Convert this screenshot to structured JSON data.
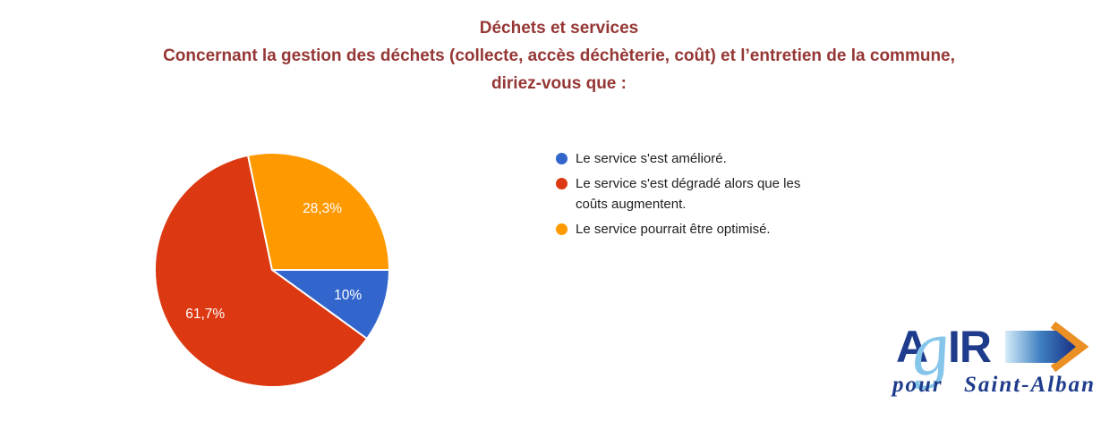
{
  "page": {
    "background": "#ffffff"
  },
  "title": {
    "color": "#953735",
    "lines": [
      "Déchets et services",
      "Concernant la gestion des déchets (collecte, accès déchèterie, coût) et l’entretien de la commune,",
      "diriez-vous que :"
    ]
  },
  "chart_data": {
    "type": "pie",
    "title": "Déchets et services",
    "question": "Concernant la gestion des déchets (collecte, accès déchèterie, coût) et l’entretien de la commune, diriez-vous que :",
    "start_angle_deg": 0,
    "direction": "clockwise",
    "legend_position": "right",
    "slice_label_color": "#ffffff",
    "slice_border_color": "#ffffff",
    "slices": [
      {
        "label": "Le service s'est amélioré.",
        "value": 10,
        "display": "10%",
        "color": "#3366CC"
      },
      {
        "label": "Le service s'est dégradé alors que les coûts augmentent.",
        "value": 61.7,
        "display": "61,7%",
        "color": "#DC3912"
      },
      {
        "label": "Le service pourrait être optimisé.",
        "value": 28.3,
        "display": "28,3%",
        "color": "#FF9900"
      }
    ]
  },
  "logo": {
    "acronym_a": "A",
    "acronym_g": "g",
    "acronym_ir": "IR",
    "subtext_left": "pour",
    "subtext_right": "Saint-Alban",
    "navy": "#1F3C8C",
    "light_blue": "#86C5EA",
    "arrow_gradient_start": "#D6EDF9",
    "arrow_gradient_mid": "#3E7FC1",
    "arrow_gradient_end": "#1F3C8C",
    "chevron_orange": "#EB9025"
  }
}
